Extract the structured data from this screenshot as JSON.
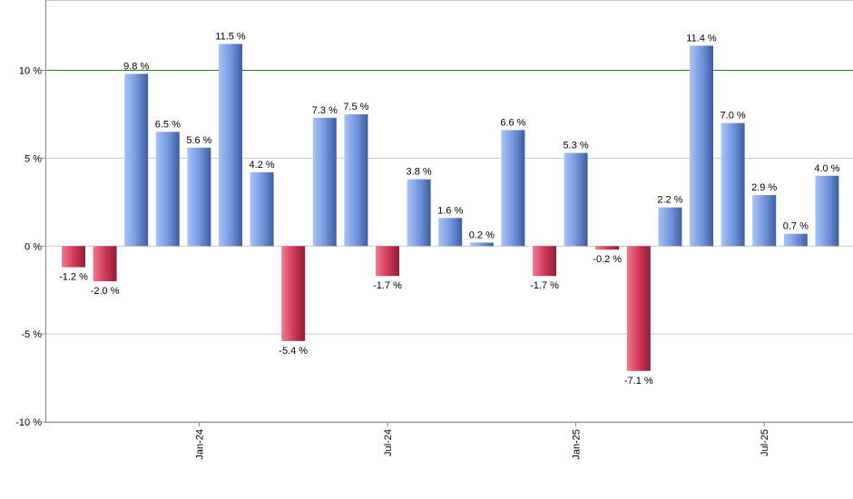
{
  "chart_data": {
    "type": "bar",
    "title": "",
    "xlabel": "",
    "ylabel": "",
    "ylim": [
      -10,
      14
    ],
    "grid": true,
    "reference_line": {
      "value": 10,
      "color": "#2e7d32"
    },
    "y_ticks": [
      {
        "value": 10,
        "label": "10 %"
      },
      {
        "value": 5,
        "label": "5 %"
      },
      {
        "value": 0,
        "label": "0 %"
      },
      {
        "value": -5,
        "label": "-5 %"
      },
      {
        "value": -10,
        "label": "-10 %"
      }
    ],
    "x_ticks": [
      {
        "index": 4,
        "label": "Jan-24"
      },
      {
        "index": 10,
        "label": "Jul-24"
      },
      {
        "index": 16,
        "label": "Jan-25"
      },
      {
        "index": 22,
        "label": "Jul-25"
      }
    ],
    "values": [
      -1.2,
      -2.0,
      9.8,
      6.5,
      5.6,
      11.5,
      4.2,
      -5.4,
      7.3,
      7.5,
      -1.7,
      3.8,
      1.6,
      0.2,
      6.6,
      -1.7,
      5.3,
      -0.2,
      -7.1,
      2.2,
      11.4,
      7.0,
      2.9,
      0.7,
      4.0
    ],
    "labels": [
      "-1.2 %",
      "-2.0 %",
      "9.8 %",
      "6.5 %",
      "5.6 %",
      "11.5 %",
      "4.2 %",
      "-5.4 %",
      "7.3 %",
      "7.5 %",
      "-1.7 %",
      "3.8 %",
      "1.6 %",
      "0.2 %",
      "6.6 %",
      "-1.7 %",
      "5.3 %",
      "-0.2 %",
      "-7.1 %",
      "2.2 %",
      "11.4 %",
      "7.0 %",
      "2.9 %",
      "0.7 %",
      "4.0 %"
    ],
    "colors": {
      "positive": "#7f9fe0",
      "negative": "#d23a58",
      "grid": "#c8c8c8",
      "axis": "#888888"
    }
  }
}
